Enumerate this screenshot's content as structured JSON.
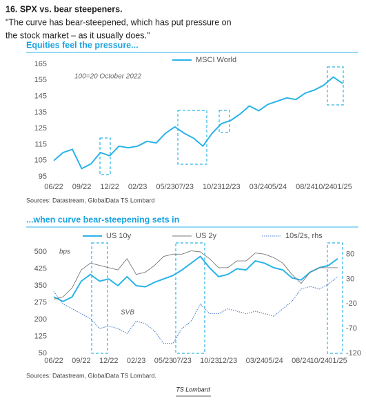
{
  "header": {
    "title": "16. SPX vs. bear steepeners.",
    "quote": "\"The curve has bear-steepened, which has put pressure on",
    "quote_line2": "the stock market – as it usually does.\""
  },
  "footer": "TS Lombard",
  "chart_data": [
    {
      "type": "line",
      "title": "Equities feel the pressure...",
      "annotation": "100=20 October 2022",
      "source": "Sources: Datastream, GlobalData TS Lombard",
      "categories": [
        "06/22",
        null,
        null,
        "09/22",
        null,
        null,
        "12/22",
        null,
        null,
        "02/23",
        null,
        null,
        "05/23",
        null,
        "07/23",
        null,
        null,
        "10/23",
        null,
        "12/23",
        null,
        null,
        "03/24",
        null,
        "05/24",
        null,
        null,
        "08/24",
        null,
        "10/24",
        null,
        "01/25"
      ],
      "series": [
        {
          "name": "MSCI World",
          "color": "#29b3e8",
          "style": "bold",
          "values": [
            105,
            110,
            112,
            100,
            103,
            110,
            108,
            114,
            113,
            114,
            117,
            116,
            122,
            126,
            122,
            119,
            114,
            122,
            128,
            130,
            134,
            139,
            136,
            140,
            142,
            144,
            143,
            147,
            149,
            152,
            157,
            153
          ]
        }
      ],
      "ylim": [
        95,
        165
      ],
      "yticks": [
        95,
        105,
        115,
        125,
        135,
        145,
        155,
        165
      ]
    },
    {
      "type": "line",
      "title": "...when curve bear-steepening sets in",
      "unit_label": "bps",
      "annotation": "SVB",
      "source": "Sources: Datastream, GlobalData TS Lombard.",
      "categories": [
        "06/22",
        null,
        null,
        "09/22",
        null,
        null,
        "12/22",
        null,
        null,
        "02/23",
        null,
        null,
        "05/23",
        null,
        "07/23",
        null,
        null,
        "10/23",
        null,
        "12/23",
        null,
        null,
        "03/24",
        null,
        "05/24",
        null,
        null,
        "08/24",
        null,
        "10/24",
        null,
        "01/25"
      ],
      "series": [
        {
          "name": "US 10y",
          "color": "#29b3e8",
          "style": "bold",
          "values": [
            300,
            280,
            300,
            370,
            400,
            370,
            380,
            350,
            390,
            350,
            345,
            365,
            380,
            395,
            420,
            450,
            480,
            430,
            390,
            400,
            425,
            420,
            460,
            450,
            430,
            420,
            385,
            375,
            410,
            430,
            440,
            470
          ]
        },
        {
          "name": "US 2y",
          "color": "#777777",
          "style": "thin",
          "values": [
            290,
            300,
            340,
            420,
            450,
            440,
            430,
            420,
            470,
            400,
            410,
            440,
            480,
            490,
            490,
            505,
            500,
            470,
            430,
            430,
            460,
            460,
            495,
            490,
            475,
            450,
            400,
            360,
            410,
            430,
            430,
            430
          ]
        },
        {
          "name": "10s/2s, rhs",
          "color": "#4a7fd0",
          "style": "dotted",
          "axis": "y2",
          "values": [
            5,
            -20,
            -30,
            -40,
            -50,
            -70,
            -65,
            -70,
            -80,
            -55,
            -60,
            -75,
            -100,
            -100,
            -70,
            -55,
            -20,
            -40,
            -40,
            -30,
            -35,
            -40,
            -35,
            -40,
            -45,
            -30,
            -15,
            10,
            15,
            10,
            20,
            35
          ]
        }
      ],
      "ylim": [
        50,
        500
      ],
      "yticks": [
        50,
        125,
        200,
        275,
        350,
        425,
        500
      ],
      "y2lim": [
        -120,
        85
      ],
      "y2ticks": [
        -120,
        -70,
        -20,
        30,
        80
      ]
    }
  ]
}
